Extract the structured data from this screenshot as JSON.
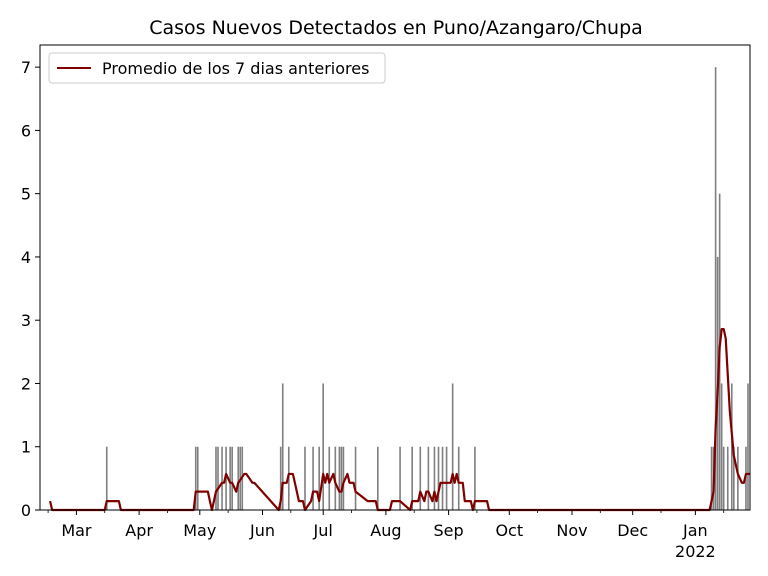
{
  "chart_data": {
    "type": "bar",
    "title": "Casos Nuevos Detectados en Puno/Azangaro/Chupa",
    "xlabel": "",
    "ylabel": "",
    "ylim": [
      0,
      7.35
    ],
    "xlim": [
      "2021-02-11",
      "2022-01-28"
    ],
    "grid": false,
    "legend_position": "top-left",
    "colors": {
      "bars": "#808080",
      "line": "#800000"
    },
    "x_ticks": [
      {
        "date": "2021-03-01",
        "label": "Mar",
        "label2": ""
      },
      {
        "date": "2021-04-01",
        "label": "Apr",
        "label2": ""
      },
      {
        "date": "2021-05-01",
        "label": "May",
        "label2": ""
      },
      {
        "date": "2021-06-01",
        "label": "Jun",
        "label2": ""
      },
      {
        "date": "2021-07-01",
        "label": "Jul",
        "label2": ""
      },
      {
        "date": "2021-08-01",
        "label": "Aug",
        "label2": ""
      },
      {
        "date": "2021-09-01",
        "label": "Sep",
        "label2": ""
      },
      {
        "date": "2021-10-01",
        "label": "Oct",
        "label2": ""
      },
      {
        "date": "2021-11-01",
        "label": "Nov",
        "label2": ""
      },
      {
        "date": "2021-12-01",
        "label": "Dec",
        "label2": ""
      },
      {
        "date": "2022-01-01",
        "label": "Jan",
        "label2": "2022"
      }
    ],
    "y_ticks": [
      0,
      1,
      2,
      3,
      4,
      5,
      6,
      7
    ],
    "series": [
      {
        "kind": "bar",
        "x": [
          "2021-03-16",
          "2021-04-29",
          "2021-04-30",
          "2021-05-09",
          "2021-05-10",
          "2021-05-12",
          "2021-05-14",
          "2021-05-16",
          "2021-05-17",
          "2021-05-20",
          "2021-05-21",
          "2021-05-22",
          "2021-06-10",
          "2021-06-11",
          "2021-06-14",
          "2021-06-22",
          "2021-06-26",
          "2021-06-29",
          "2021-07-01",
          "2021-07-04",
          "2021-07-07",
          "2021-07-09",
          "2021-07-10",
          "2021-07-11",
          "2021-07-17",
          "2021-07-28",
          "2021-08-08",
          "2021-08-14",
          "2021-08-18",
          "2021-08-22",
          "2021-08-25",
          "2021-08-27",
          "2021-08-29",
          "2021-08-31",
          "2021-09-03",
          "2021-09-06",
          "2021-09-14",
          "2022-01-09",
          "2022-01-10",
          "2022-01-11",
          "2022-01-12",
          "2022-01-13",
          "2022-01-14",
          "2022-01-15",
          "2022-01-17",
          "2022-01-19",
          "2022-01-20",
          "2022-01-22",
          "2022-01-26",
          "2022-01-27"
        ],
        "values": [
          1,
          1,
          1,
          1,
          1,
          1,
          1,
          1,
          1,
          1,
          1,
          1,
          1,
          2,
          1,
          1,
          1,
          1,
          2,
          1,
          1,
          1,
          1,
          1,
          1,
          1,
          1,
          1,
          1,
          1,
          1,
          1,
          1,
          1,
          2,
          1,
          1,
          1,
          1,
          7,
          4,
          5,
          2,
          1,
          1,
          2,
          1,
          1,
          1,
          2
        ]
      },
      {
        "kind": "line",
        "name": "Promedio de los 7 dias anteriores",
        "x": [
          "2021-02-16",
          "2021-02-17",
          "2021-03-15",
          "2021-03-16",
          "2021-03-22",
          "2021-03-23",
          "2021-04-28",
          "2021-04-29",
          "2021-05-05",
          "2021-05-06",
          "2021-05-07",
          "2021-05-09",
          "2021-05-12",
          "2021-05-13",
          "2021-05-14",
          "2021-05-16",
          "2021-05-17",
          "2021-05-19",
          "2021-05-20",
          "2021-05-23",
          "2021-05-24",
          "2021-05-27",
          "2021-05-28",
          "2021-06-09",
          "2021-06-10",
          "2021-06-11",
          "2021-06-13",
          "2021-06-14",
          "2021-06-16",
          "2021-06-17",
          "2021-06-19",
          "2021-06-20",
          "2021-06-21",
          "2021-06-22",
          "2021-06-25",
          "2021-06-26",
          "2021-06-28",
          "2021-06-29",
          "2021-07-01",
          "2021-07-02",
          "2021-07-03",
          "2021-07-04",
          "2021-07-06",
          "2021-07-07",
          "2021-07-09",
          "2021-07-10",
          "2021-07-11",
          "2021-07-13",
          "2021-07-14",
          "2021-07-16",
          "2021-07-17",
          "2021-07-23",
          "2021-07-24",
          "2021-07-27",
          "2021-07-28",
          "2021-08-03",
          "2021-08-04",
          "2021-08-07",
          "2021-08-08",
          "2021-08-13",
          "2021-08-14",
          "2021-08-15",
          "2021-08-17",
          "2021-08-18",
          "2021-08-20",
          "2021-08-21",
          "2021-08-22",
          "2021-08-24",
          "2021-08-25",
          "2021-08-26",
          "2021-08-28",
          "2021-08-29",
          "2021-09-02",
          "2021-09-03",
          "2021-09-04",
          "2021-09-05",
          "2021-09-06",
          "2021-09-08",
          "2021-09-09",
          "2021-09-11",
          "2021-09-12",
          "2021-09-13",
          "2021-09-14",
          "2021-09-20",
          "2021-09-21",
          "2022-01-08",
          "2022-01-09",
          "2022-01-10",
          "2022-01-11",
          "2022-01-12",
          "2022-01-13",
          "2022-01-14",
          "2022-01-15",
          "2022-01-16",
          "2022-01-18",
          "2022-01-20",
          "2022-01-22",
          "2022-01-24",
          "2022-01-25",
          "2022-01-26",
          "2022-01-27",
          "2022-01-28"
        ],
        "values": [
          0.14,
          0,
          0,
          0.14,
          0.14,
          0,
          0,
          0.29,
          0.29,
          0.14,
          0,
          0.29,
          0.43,
          0.43,
          0.57,
          0.43,
          0.43,
          0.29,
          0.43,
          0.57,
          0.57,
          0.43,
          0.43,
          0,
          0.14,
          0.43,
          0.43,
          0.57,
          0.57,
          0.43,
          0.14,
          0.14,
          0.14,
          0,
          0.14,
          0.29,
          0.29,
          0.14,
          0.57,
          0.43,
          0.57,
          0.43,
          0.57,
          0.43,
          0.29,
          0.29,
          0.43,
          0.57,
          0.43,
          0.43,
          0.29,
          0.14,
          0.14,
          0.14,
          0,
          0,
          0.14,
          0.14,
          0.14,
          0,
          0.14,
          0.14,
          0.14,
          0.29,
          0.14,
          0.29,
          0.29,
          0.14,
          0.29,
          0.14,
          0.43,
          0.43,
          0.43,
          0.57,
          0.43,
          0.57,
          0.43,
          0.43,
          0.14,
          0.14,
          0.14,
          0,
          0.14,
          0.14,
          0,
          0,
          0.14,
          0.29,
          1.29,
          1.86,
          2.57,
          2.86,
          2.86,
          2.71,
          1.57,
          0.86,
          0.57,
          0.43,
          0.43,
          0.57,
          0.57,
          0.57
        ]
      }
    ]
  }
}
